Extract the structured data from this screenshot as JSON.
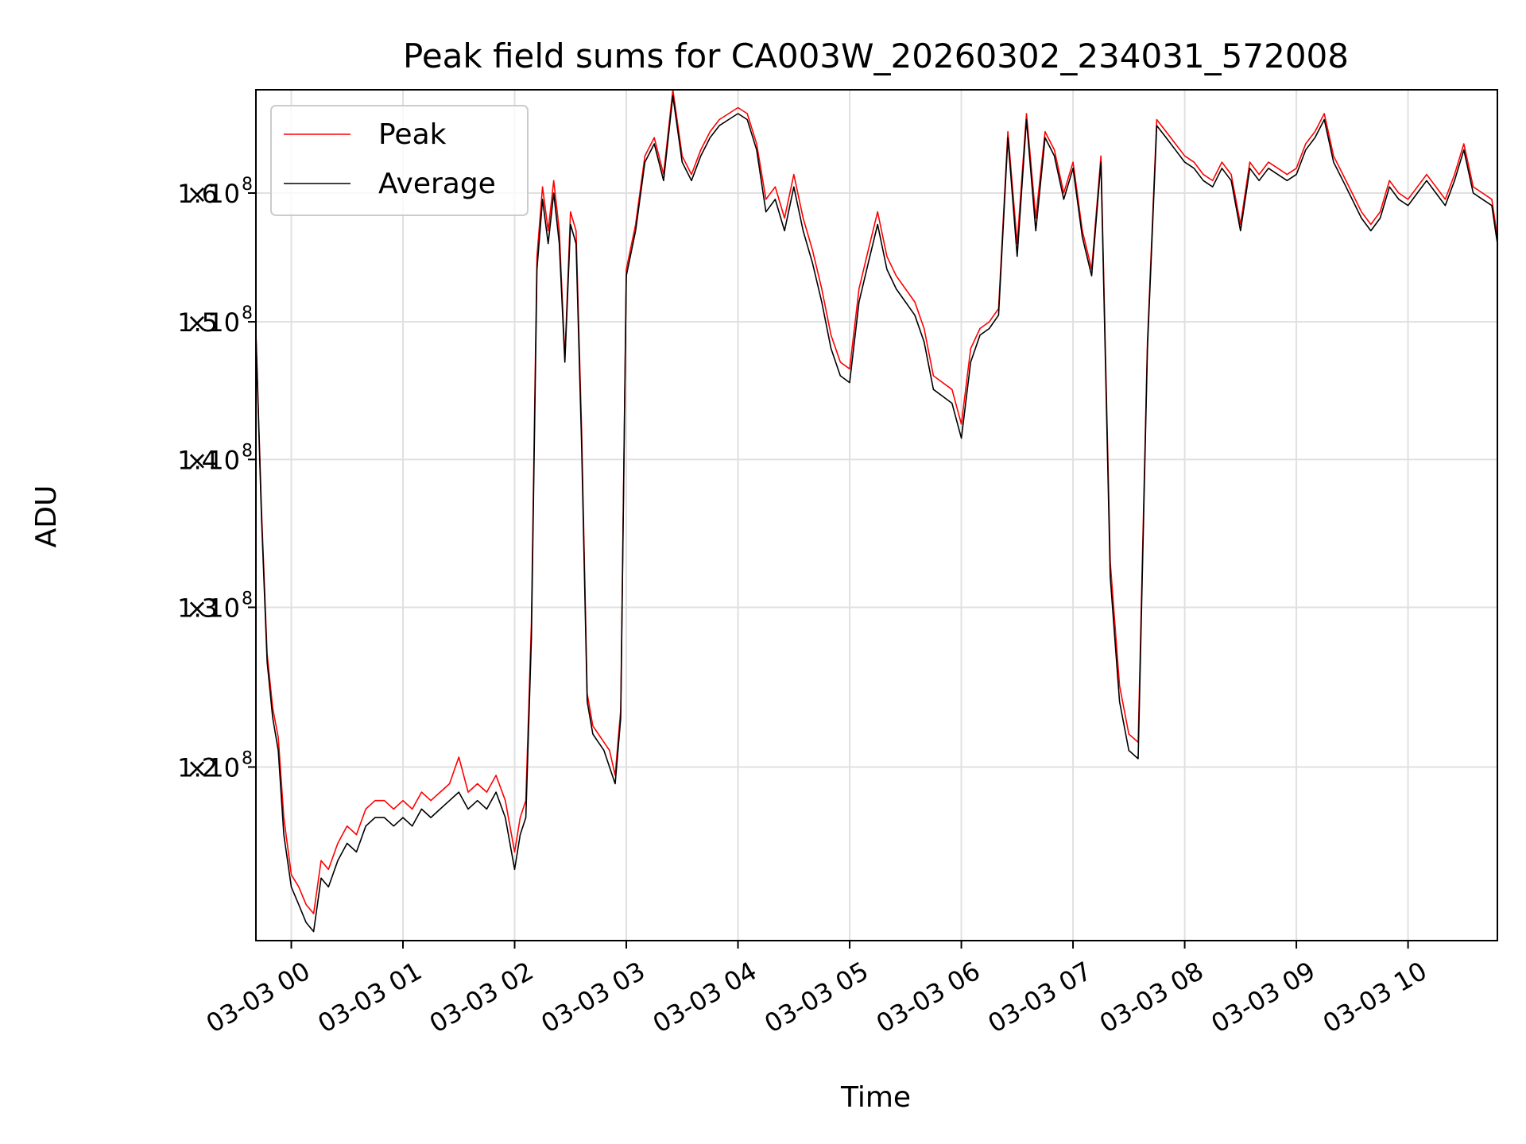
{
  "chart_data": {
    "type": "line",
    "title": "Peak field sums for CA003W_20260302_234031_572008",
    "xlabel": "Time",
    "ylabel": "ADU",
    "yscale": "log",
    "ylim": [
      110000000.0,
      168500000.0
    ],
    "xlim": [
      "2026-03-02 23:41",
      "2026-03-03 10:48"
    ],
    "grid": true,
    "legend": {
      "placement": "top-left",
      "entries": [
        "Peak",
        "Average"
      ]
    },
    "x_ticks": [
      {
        "value": "2026-03-03 00:00",
        "label": "03-03 00"
      },
      {
        "value": "2026-03-03 01:00",
        "label": "03-03 01"
      },
      {
        "value": "2026-03-03 02:00",
        "label": "03-03 02"
      },
      {
        "value": "2026-03-03 03:00",
        "label": "03-03 03"
      },
      {
        "value": "2026-03-03 04:00",
        "label": "03-03 04"
      },
      {
        "value": "2026-03-03 05:00",
        "label": "03-03 05"
      },
      {
        "value": "2026-03-03 06:00",
        "label": "03-03 06"
      },
      {
        "value": "2026-03-03 07:00",
        "label": "03-03 07"
      },
      {
        "value": "2026-03-03 08:00",
        "label": "03-03 08"
      },
      {
        "value": "2026-03-03 09:00",
        "label": "03-03 09"
      },
      {
        "value": "2026-03-03 10:00",
        "label": "03-03 10"
      }
    ],
    "y_ticks": [
      {
        "value": 120000000.0,
        "mantissa": "1.2",
        "exponent": "8"
      },
      {
        "value": 130000000.0,
        "mantissa": "1.3",
        "exponent": "8"
      },
      {
        "value": 140000000.0,
        "mantissa": "1.4",
        "exponent": "8"
      },
      {
        "value": 150000000.0,
        "mantissa": "1.5",
        "exponent": "8"
      },
      {
        "value": 160000000.0,
        "mantissa": "1.6",
        "exponent": "8"
      }
    ],
    "series": [
      {
        "name": "Peak",
        "color": "#ff0000",
        "x": [
          "2026-03-02 23:41",
          "2026-03-02 23:44",
          "2026-03-02 23:47",
          "2026-03-02 23:50",
          "2026-03-02 23:53",
          "2026-03-02 23:56",
          "2026-03-03 00:00",
          "2026-03-03 00:04",
          "2026-03-03 00:08",
          "2026-03-03 00:12",
          "2026-03-03 00:16",
          "2026-03-03 00:20",
          "2026-03-03 00:25",
          "2026-03-03 00:30",
          "2026-03-03 00:35",
          "2026-03-03 00:40",
          "2026-03-03 00:45",
          "2026-03-03 00:50",
          "2026-03-03 00:55",
          "2026-03-03 01:00",
          "2026-03-03 01:05",
          "2026-03-03 01:10",
          "2026-03-03 01:15",
          "2026-03-03 01:20",
          "2026-03-03 01:25",
          "2026-03-03 01:30",
          "2026-03-03 01:35",
          "2026-03-03 01:40",
          "2026-03-03 01:45",
          "2026-03-03 01:50",
          "2026-03-03 01:55",
          "2026-03-03 02:00",
          "2026-03-03 02:03",
          "2026-03-03 02:06",
          "2026-03-03 02:09",
          "2026-03-03 02:12",
          "2026-03-03 02:15",
          "2026-03-03 02:18",
          "2026-03-03 02:21",
          "2026-03-03 02:24",
          "2026-03-03 02:27",
          "2026-03-03 02:30",
          "2026-03-03 02:33",
          "2026-03-03 02:36",
          "2026-03-03 02:39",
          "2026-03-03 02:42",
          "2026-03-03 02:45",
          "2026-03-03 02:48",
          "2026-03-03 02:51",
          "2026-03-03 02:54",
          "2026-03-03 02:57",
          "2026-03-03 03:00",
          "2026-03-03 03:05",
          "2026-03-03 03:10",
          "2026-03-03 03:15",
          "2026-03-03 03:20",
          "2026-03-03 03:25",
          "2026-03-03 03:30",
          "2026-03-03 03:35",
          "2026-03-03 03:40",
          "2026-03-03 03:45",
          "2026-03-03 03:50",
          "2026-03-03 03:55",
          "2026-03-03 04:00",
          "2026-03-03 04:05",
          "2026-03-03 04:10",
          "2026-03-03 04:15",
          "2026-03-03 04:20",
          "2026-03-03 04:25",
          "2026-03-03 04:30",
          "2026-03-03 04:35",
          "2026-03-03 04:40",
          "2026-03-03 04:45",
          "2026-03-03 04:50",
          "2026-03-03 04:55",
          "2026-03-03 05:00",
          "2026-03-03 05:05",
          "2026-03-03 05:10",
          "2026-03-03 05:15",
          "2026-03-03 05:20",
          "2026-03-03 05:25",
          "2026-03-03 05:30",
          "2026-03-03 05:35",
          "2026-03-03 05:40",
          "2026-03-03 05:45",
          "2026-03-03 05:50",
          "2026-03-03 05:55",
          "2026-03-03 06:00",
          "2026-03-03 06:05",
          "2026-03-03 06:10",
          "2026-03-03 06:15",
          "2026-03-03 06:20",
          "2026-03-03 06:25",
          "2026-03-03 06:30",
          "2026-03-03 06:35",
          "2026-03-03 06:40",
          "2026-03-03 06:45",
          "2026-03-03 06:50",
          "2026-03-03 06:55",
          "2026-03-03 07:00",
          "2026-03-03 07:05",
          "2026-03-03 07:10",
          "2026-03-03 07:15",
          "2026-03-03 07:20",
          "2026-03-03 07:25",
          "2026-03-03 07:30",
          "2026-03-03 07:35",
          "2026-03-03 07:40",
          "2026-03-03 07:45",
          "2026-03-03 07:50",
          "2026-03-03 07:55",
          "2026-03-03 08:00",
          "2026-03-03 08:05",
          "2026-03-03 08:10",
          "2026-03-03 08:15",
          "2026-03-03 08:20",
          "2026-03-03 08:25",
          "2026-03-03 08:30",
          "2026-03-03 08:35",
          "2026-03-03 08:40",
          "2026-03-03 08:45",
          "2026-03-03 08:50",
          "2026-03-03 08:55",
          "2026-03-03 09:00",
          "2026-03-03 09:05",
          "2026-03-03 09:10",
          "2026-03-03 09:15",
          "2026-03-03 09:20",
          "2026-03-03 09:25",
          "2026-03-03 09:30",
          "2026-03-03 09:35",
          "2026-03-03 09:40",
          "2026-03-03 09:45",
          "2026-03-03 09:50",
          "2026-03-03 09:55",
          "2026-03-03 10:00",
          "2026-03-03 10:05",
          "2026-03-03 10:10",
          "2026-03-03 10:15",
          "2026-03-03 10:20",
          "2026-03-03 10:25",
          "2026-03-03 10:30",
          "2026-03-03 10:35",
          "2026-03-03 10:40",
          "2026-03-03 10:45",
          "2026-03-03 10:48"
        ],
        "values": [
          149300000.0,
          136500000.0,
          127000000.0,
          123600000.0,
          121800000.0,
          117000000.0,
          113700000.0,
          113000000.0,
          112000000.0,
          111500000.0,
          114500000.0,
          114000000.0,
          115500000.0,
          116500000.0,
          116000000.0,
          117500000.0,
          118000000.0,
          118000000.0,
          117500000.0,
          118000000.0,
          117500000.0,
          118500000.0,
          118000000.0,
          118500000.0,
          119000000.0,
          120600000.0,
          118500000.0,
          119000000.0,
          118500000.0,
          119500000.0,
          118000000.0,
          115000000.0,
          117000000.0,
          118000000.0,
          129000000.0,
          155000000.0,
          160500000.0,
          157000000.0,
          161000000.0,
          157000000.0,
          147300000.0,
          158500000.0,
          157000000.0,
          142000000.0,
          124500000.0,
          122500000.0,
          122000000.0,
          121500000.0,
          121000000.0,
          119500000.0,
          123500000.0,
          154000000.0,
          157500000.0,
          163000000.0,
          164500000.0,
          161500000.0,
          168500000.0,
          163000000.0,
          161500000.0,
          163500000.0,
          165000000.0,
          166000000.0,
          166500000.0,
          167000000.0,
          166500000.0,
          164000000.0,
          159500000.0,
          160500000.0,
          158000000.0,
          161500000.0,
          158000000.0,
          155500000.0,
          152500000.0,
          149000000.0,
          147000000.0,
          146500000.0,
          152500000.0,
          155500000.0,
          158500000.0,
          155000000.0,
          153500000.0,
          152500000.0,
          151500000.0,
          149500000.0,
          146000000.0,
          145500000.0,
          145000000.0,
          142500000.0,
          148000000.0,
          149500000.0,
          150000000.0,
          151000000.0,
          165000000.0,
          156000000.0,
          166500000.0,
          158000000.0,
          165000000.0,
          163500000.0,
          160000000.0,
          162500000.0,
          157000000.0,
          154000000.0,
          163000000.0,
          133000000.0,
          125000000.0,
          122000000.0,
          121500000.0,
          148500000.0,
          166000000.0,
          165000000.0,
          164000000.0,
          163000000.0,
          162500000.0,
          161500000.0,
          161000000.0,
          162500000.0,
          161500000.0,
          157500000.0,
          162500000.0,
          161500000.0,
          162500000.0,
          162000000.0,
          161500000.0,
          162000000.0,
          164000000.0,
          165000000.0,
          166500000.0,
          163000000.0,
          161500000.0,
          160000000.0,
          158500000.0,
          157500000.0,
          158500000.0,
          161000000.0,
          160000000.0,
          159500000.0,
          160500000.0,
          161500000.0,
          160500000.0,
          159500000.0,
          161500000.0,
          164000000.0,
          160500000.0,
          160000000.0,
          159500000.0,
          156500000.0
        ]
      },
      {
        "name": "Average",
        "color": "#000000",
        "x": [
          "2026-03-02 23:41",
          "2026-03-02 23:44",
          "2026-03-02 23:47",
          "2026-03-02 23:50",
          "2026-03-02 23:53",
          "2026-03-02 23:56",
          "2026-03-03 00:00",
          "2026-03-03 00:04",
          "2026-03-03 00:08",
          "2026-03-03 00:12",
          "2026-03-03 00:16",
          "2026-03-03 00:20",
          "2026-03-03 00:25",
          "2026-03-03 00:30",
          "2026-03-03 00:35",
          "2026-03-03 00:40",
          "2026-03-03 00:45",
          "2026-03-03 00:50",
          "2026-03-03 00:55",
          "2026-03-03 01:00",
          "2026-03-03 01:05",
          "2026-03-03 01:10",
          "2026-03-03 01:15",
          "2026-03-03 01:20",
          "2026-03-03 01:25",
          "2026-03-03 01:30",
          "2026-03-03 01:35",
          "2026-03-03 01:40",
          "2026-03-03 01:45",
          "2026-03-03 01:50",
          "2026-03-03 01:55",
          "2026-03-03 02:00",
          "2026-03-03 02:03",
          "2026-03-03 02:06",
          "2026-03-03 02:09",
          "2026-03-03 02:12",
          "2026-03-03 02:15",
          "2026-03-03 02:18",
          "2026-03-03 02:21",
          "2026-03-03 02:24",
          "2026-03-03 02:27",
          "2026-03-03 02:30",
          "2026-03-03 02:33",
          "2026-03-03 02:36",
          "2026-03-03 02:39",
          "2026-03-03 02:42",
          "2026-03-03 02:45",
          "2026-03-03 02:48",
          "2026-03-03 02:51",
          "2026-03-03 02:54",
          "2026-03-03 02:57",
          "2026-03-03 03:00",
          "2026-03-03 03:05",
          "2026-03-03 03:10",
          "2026-03-03 03:15",
          "2026-03-03 03:20",
          "2026-03-03 03:25",
          "2026-03-03 03:30",
          "2026-03-03 03:35",
          "2026-03-03 03:40",
          "2026-03-03 03:45",
          "2026-03-03 03:50",
          "2026-03-03 03:55",
          "2026-03-03 04:00",
          "2026-03-03 04:05",
          "2026-03-03 04:10",
          "2026-03-03 04:15",
          "2026-03-03 04:20",
          "2026-03-03 04:25",
          "2026-03-03 04:30",
          "2026-03-03 04:35",
          "2026-03-03 04:40",
          "2026-03-03 04:45",
          "2026-03-03 04:50",
          "2026-03-03 04:55",
          "2026-03-03 05:00",
          "2026-03-03 05:05",
          "2026-03-03 05:10",
          "2026-03-03 05:15",
          "2026-03-03 05:20",
          "2026-03-03 05:25",
          "2026-03-03 05:30",
          "2026-03-03 05:35",
          "2026-03-03 05:40",
          "2026-03-03 05:45",
          "2026-03-03 05:50",
          "2026-03-03 05:55",
          "2026-03-03 06:00",
          "2026-03-03 06:05",
          "2026-03-03 06:10",
          "2026-03-03 06:15",
          "2026-03-03 06:20",
          "2026-03-03 06:25",
          "2026-03-03 06:30",
          "2026-03-03 06:35",
          "2026-03-03 06:40",
          "2026-03-03 06:45",
          "2026-03-03 06:50",
          "2026-03-03 06:55",
          "2026-03-03 07:00",
          "2026-03-03 07:05",
          "2026-03-03 07:10",
          "2026-03-03 07:15",
          "2026-03-03 07:20",
          "2026-03-03 07:25",
          "2026-03-03 07:30",
          "2026-03-03 07:35",
          "2026-03-03 07:40",
          "2026-03-03 07:45",
          "2026-03-03 07:50",
          "2026-03-03 07:55",
          "2026-03-03 08:00",
          "2026-03-03 08:05",
          "2026-03-03 08:10",
          "2026-03-03 08:15",
          "2026-03-03 08:20",
          "2026-03-03 08:25",
          "2026-03-03 08:30",
          "2026-03-03 08:35",
          "2026-03-03 08:40",
          "2026-03-03 08:45",
          "2026-03-03 08:50",
          "2026-03-03 08:55",
          "2026-03-03 09:00",
          "2026-03-03 09:05",
          "2026-03-03 09:10",
          "2026-03-03 09:15",
          "2026-03-03 09:20",
          "2026-03-03 09:25",
          "2026-03-03 09:30",
          "2026-03-03 09:35",
          "2026-03-03 09:40",
          "2026-03-03 09:45",
          "2026-03-03 09:50",
          "2026-03-03 09:55",
          "2026-03-03 10:00",
          "2026-03-03 10:05",
          "2026-03-03 10:10",
          "2026-03-03 10:15",
          "2026-03-03 10:20",
          "2026-03-03 10:25",
          "2026-03-03 10:30",
          "2026-03-03 10:35",
          "2026-03-03 10:40",
          "2026-03-03 10:45",
          "2026-03-03 10:48"
        ],
        "values": [
          149000000.0,
          136000000.0,
          126500000.0,
          123000000.0,
          121000000.0,
          116000000.0,
          113000000.0,
          112000000.0,
          111000000.0,
          110500000.0,
          113500000.0,
          113000000.0,
          114500000.0,
          115500000.0,
          115000000.0,
          116500000.0,
          117000000.0,
          117000000.0,
          116500000.0,
          117000000.0,
          116500000.0,
          117500000.0,
          117000000.0,
          117500000.0,
          118000000.0,
          118500000.0,
          117500000.0,
          118000000.0,
          117500000.0,
          118500000.0,
          117000000.0,
          114000000.0,
          116000000.0,
          117000000.0,
          128000000.0,
          154000000.0,
          159500000.0,
          156000000.0,
          160000000.0,
          156000000.0,
          147000000.0,
          157500000.0,
          156000000.0,
          141000000.0,
          124000000.0,
          122000000.0,
          121500000.0,
          121000000.0,
          120000000.0,
          119000000.0,
          123000000.0,
          153500000.0,
          157000000.0,
          162500000.0,
          164000000.0,
          161000000.0,
          168000000.0,
          162500000.0,
          161000000.0,
          163000000.0,
          164500000.0,
          165500000.0,
          166000000.0,
          166500000.0,
          166000000.0,
          163500000.0,
          158500000.0,
          159500000.0,
          157000000.0,
          160500000.0,
          157000000.0,
          154500000.0,
          151500000.0,
          148000000.0,
          146000000.0,
          145500000.0,
          151500000.0,
          154500000.0,
          157500000.0,
          154000000.0,
          152500000.0,
          151500000.0,
          150500000.0,
          148500000.0,
          145000000.0,
          144500000.0,
          144000000.0,
          141500000.0,
          147000000.0,
          149000000.0,
          149500000.0,
          150500000.0,
          164500000.0,
          155000000.0,
          166000000.0,
          157000000.0,
          164500000.0,
          163000000.0,
          159500000.0,
          162000000.0,
          156500000.0,
          153500000.0,
          162500000.0,
          132000000.0,
          124000000.0,
          121000000.0,
          120500000.0,
          148000000.0,
          165500000.0,
          164500000.0,
          163500000.0,
          162500000.0,
          162000000.0,
          161000000.0,
          160500000.0,
          162000000.0,
          161000000.0,
          157000000.0,
          162000000.0,
          161000000.0,
          162000000.0,
          161500000.0,
          161000000.0,
          161500000.0,
          163500000.0,
          164500000.0,
          166000000.0,
          162500000.0,
          161000000.0,
          159500000.0,
          158000000.0,
          157000000.0,
          158000000.0,
          160500000.0,
          159500000.0,
          159000000.0,
          160000000.0,
          161000000.0,
          160000000.0,
          159000000.0,
          161000000.0,
          163500000.0,
          160000000.0,
          159500000.0,
          159000000.0,
          156000000.0
        ]
      }
    ]
  }
}
